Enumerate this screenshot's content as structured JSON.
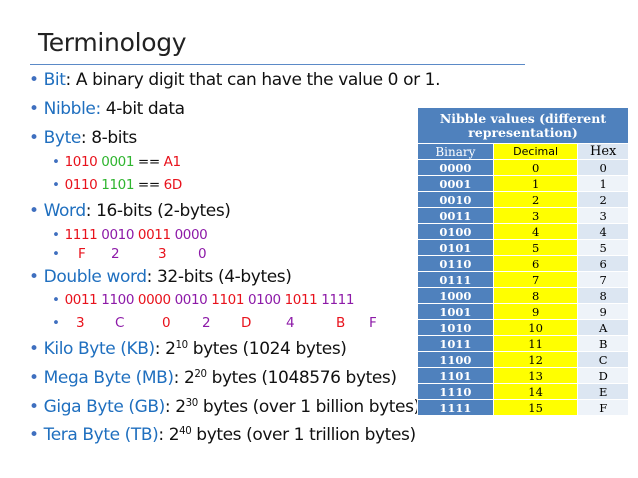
{
  "title": "Terminology",
  "bullets": {
    "bit": {
      "term": "Bit",
      "text": ": A binary digit that can have the value 0 or 1."
    },
    "nibble": {
      "term": "Nibble:",
      "text": " 4-bit data"
    },
    "byte": {
      "term": "Byte",
      "text": ": 8-bits"
    },
    "byte_ex1": {
      "a": "1010",
      "b": "0001",
      "eq": " == ",
      "hex": "A1"
    },
    "byte_ex2": {
      "a": "0110",
      "b": "1101",
      "eq": " == ",
      "hex": "6D"
    },
    "word": {
      "term": "Word",
      "text": ": 16-bits (2-bytes)"
    },
    "word_bits": [
      "1111",
      "0010",
      "0011",
      "0000"
    ],
    "word_hex": [
      "F",
      "2",
      "3",
      "0"
    ],
    "dword": {
      "term": "Double word",
      "text": ": 32-bits (4-bytes)"
    },
    "dword_bits": [
      "0011",
      "1100",
      "0000",
      "0010",
      "1101",
      "0100",
      "1011",
      "1111"
    ],
    "dword_hex": [
      "3",
      "C",
      "0",
      "2",
      "D",
      "4",
      "B",
      "F"
    ],
    "kb": {
      "term": "Kilo Byte (KB)",
      "base": ": 2",
      "exp": "10",
      "text": " bytes (1024 bytes)"
    },
    "mb": {
      "term": "Mega Byte (MB)",
      "base": ": 2",
      "exp": "20",
      "text": " bytes (1048576 bytes)"
    },
    "gb": {
      "term": "Giga Byte (GB)",
      "base": ": 2",
      "exp": "30",
      "text": " bytes (over 1 billion bytes)"
    },
    "tb": {
      "term": "Tera Byte (TB)",
      "base": ": 2",
      "exp": "40",
      "text": " bytes (over 1 trillion bytes)"
    }
  },
  "table": {
    "caption": "Nibble values (different representation)",
    "headers": [
      "Binary",
      "Decimal",
      "Hex"
    ],
    "rows": [
      [
        "0000",
        "0",
        "0"
      ],
      [
        "0001",
        "1",
        "1"
      ],
      [
        "0010",
        "2",
        "2"
      ],
      [
        "0011",
        "3",
        "3"
      ],
      [
        "0100",
        "4",
        "4"
      ],
      [
        "0101",
        "5",
        "5"
      ],
      [
        "0110",
        "6",
        "6"
      ],
      [
        "0111",
        "7",
        "7"
      ],
      [
        "1000",
        "8",
        "8"
      ],
      [
        "1001",
        "9",
        "9"
      ],
      [
        "1010",
        "10",
        "A"
      ],
      [
        "1011",
        "11",
        "B"
      ],
      [
        "1100",
        "12",
        "C"
      ],
      [
        "1101",
        "13",
        "D"
      ],
      [
        "1110",
        "14",
        "E"
      ],
      [
        "1111",
        "15",
        "F"
      ]
    ]
  },
  "colors": {
    "term_blue": "#1f6fbf",
    "red": "#e8121c",
    "green": "#2fb52f",
    "purple": "#8d1aa8",
    "table_dark": "#4f81bd",
    "table_yellow": "#ffff00",
    "table_light": "#dce6f2"
  }
}
